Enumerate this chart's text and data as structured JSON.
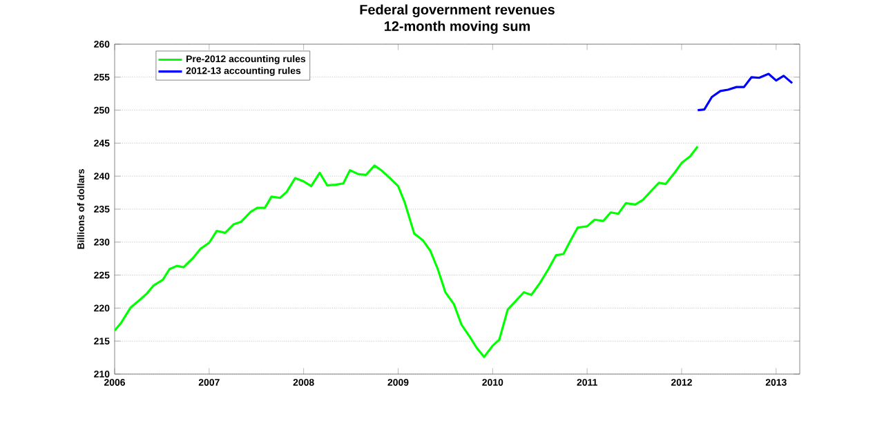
{
  "chart_data": {
    "type": "line",
    "title": "Federal government revenues",
    "subtitle": "12-month moving sum",
    "ylabel": "Billions of dollars",
    "xlim": [
      2006,
      2013.25
    ],
    "xticks": [
      2006,
      2007,
      2008,
      2009,
      2010,
      2011,
      2012,
      2013
    ],
    "ylim": [
      210,
      260
    ],
    "yticks": [
      210,
      215,
      220,
      225,
      230,
      235,
      240,
      245,
      250,
      255,
      260
    ],
    "grid": "y",
    "legend": "top left",
    "series": [
      {
        "name": "Pre-2012 accounting rules",
        "color": "#00ff00",
        "x": [
          2006.0,
          2006.07,
          2006.17,
          2006.27,
          2006.34,
          2006.41,
          2006.51,
          2006.58,
          2006.66,
          2006.73,
          2006.83,
          2006.91,
          2007.0,
          2007.08,
          2007.17,
          2007.26,
          2007.34,
          2007.44,
          2007.51,
          2007.59,
          2007.66,
          2007.75,
          2007.82,
          2007.91,
          2008.0,
          2008.08,
          2008.17,
          2008.25,
          2008.34,
          2008.42,
          2008.49,
          2008.58,
          2008.66,
          2008.75,
          2008.83,
          2008.92,
          2009.0,
          2009.07,
          2009.17,
          2009.26,
          2009.34,
          2009.42,
          2009.5,
          2009.59,
          2009.67,
          2009.76,
          2009.83,
          2009.91,
          2010.0,
          2010.07,
          2010.16,
          2010.24,
          2010.33,
          2010.41,
          2010.5,
          2010.59,
          2010.67,
          2010.75,
          2010.83,
          2010.9,
          2011.0,
          2011.08,
          2011.17,
          2011.25,
          2011.33,
          2011.41,
          2011.51,
          2011.59,
          2011.68,
          2011.76,
          2011.83,
          2011.93,
          2012.0,
          2012.09,
          2012.17
        ],
        "values": [
          216.6,
          217.8,
          220.1,
          221.3,
          222.2,
          223.4,
          224.3,
          225.9,
          226.4,
          226.2,
          227.6,
          229.0,
          229.9,
          231.7,
          231.4,
          232.7,
          233.1,
          234.6,
          235.2,
          235.2,
          236.9,
          236.7,
          237.6,
          239.7,
          239.2,
          238.5,
          240.5,
          238.6,
          238.7,
          238.9,
          240.9,
          240.3,
          240.2,
          241.6,
          240.8,
          239.6,
          238.5,
          236.0,
          231.3,
          230.3,
          228.7,
          225.9,
          222.4,
          220.6,
          217.5,
          215.6,
          214.0,
          212.6,
          214.3,
          215.2,
          219.8,
          221.0,
          222.4,
          222.0,
          223.8,
          225.9,
          228.0,
          228.2,
          230.4,
          232.2,
          232.4,
          233.4,
          233.2,
          234.5,
          234.3,
          235.9,
          235.7,
          236.4,
          237.8,
          239.0,
          238.8,
          240.6,
          242.0,
          243.0,
          244.5
        ]
      },
      {
        "name": "2012-13 accounting rules",
        "color": "#0000ff",
        "x": [
          2012.17,
          2012.24,
          2012.32,
          2012.41,
          2012.49,
          2012.58,
          2012.66,
          2012.74,
          2012.82,
          2012.92,
          2013.0,
          2013.08,
          2013.17
        ],
        "values": [
          250.0,
          250.1,
          252.0,
          252.9,
          253.1,
          253.5,
          253.5,
          255.0,
          254.9,
          255.5,
          254.5,
          255.2,
          254.1
        ]
      }
    ]
  }
}
